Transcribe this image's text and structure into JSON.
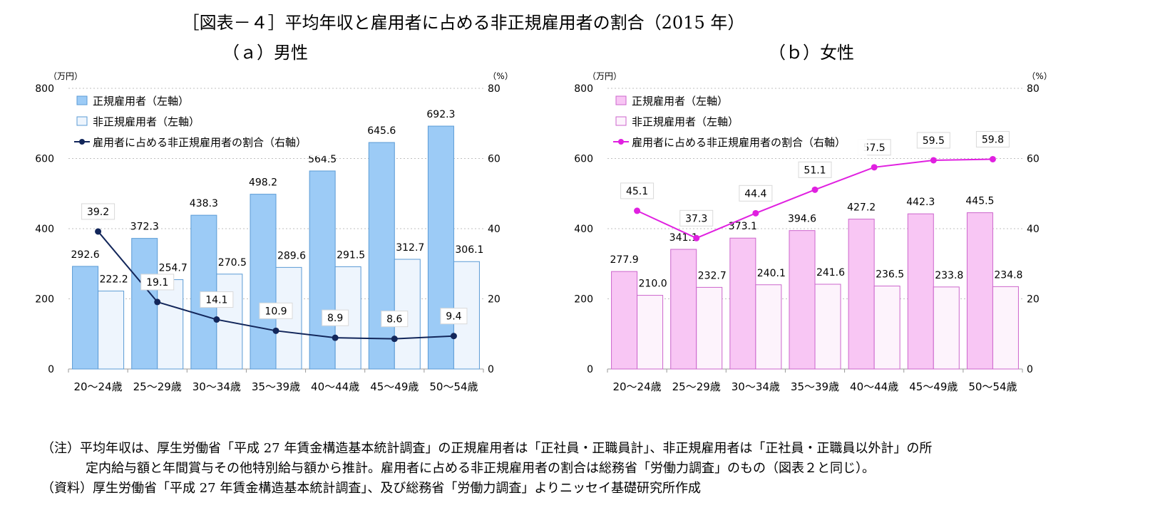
{
  "title": "［図表－４］平均年収と雇用者に占める非正規雇用者の割合（2015 年）",
  "notes": [
    "（注）平均年収は、厚生労働省「平成 27 年賃金構造基本統計調査」の正規雇用者は「正社員・正職員計」、非正規雇用者は「正社員・正職員以外計」の所",
    "定内給与額と年間賞与その他特別給与額から推計。雇用者に占める非正規雇用者の割合は総務省「労働力調査」のもの（図表２と同じ）。",
    "（資料）厚生労働省「平成 27 年賃金構造基本統計調査」、及び総務省「労働力調査」よりニッセイ基礎研究所作成"
  ],
  "chart_data": [
    {
      "type": "bar",
      "title": "（ａ）男性",
      "left_unit": "（万円）",
      "right_unit": "（%）",
      "ylim": [
        0,
        800
      ],
      "y2lim": [
        0,
        80
      ],
      "left_ticks": [
        0,
        200,
        400,
        600,
        800
      ],
      "right_ticks": [
        0,
        20,
        40,
        60,
        80
      ],
      "categories": [
        "20～24歳",
        "25～29歳",
        "30～34歳",
        "35～39歳",
        "40～44歳",
        "45～49歳",
        "50～54歳"
      ],
      "series": [
        {
          "name": "正規雇用者（左軸）",
          "kind": "bar",
          "axis": "left",
          "values": [
            292.6,
            372.3,
            438.3,
            498.2,
            564.5,
            645.6,
            692.3
          ],
          "fill": "#9ccbf6",
          "stroke": "#5b9bd5"
        },
        {
          "name": "非正規雇用者（左軸）",
          "kind": "bar",
          "axis": "left",
          "values": [
            222.2,
            254.7,
            270.5,
            289.6,
            291.5,
            312.7,
            306.1
          ],
          "fill": "#eef5fd",
          "stroke": "#5b9bd5"
        },
        {
          "name": "雇用者に占める非正規雇用者の割合（右軸）",
          "kind": "line",
          "axis": "right",
          "values": [
            39.2,
            19.1,
            14.1,
            10.9,
            8.9,
            8.6,
            9.4
          ],
          "color": "#12265a"
        }
      ],
      "grid": true,
      "legend": "top-left"
    },
    {
      "type": "bar",
      "title": "（ｂ）女性",
      "left_unit": "（万円）",
      "right_unit": "（%）",
      "ylim": [
        0,
        800
      ],
      "y2lim": [
        0,
        80
      ],
      "left_ticks": [
        0,
        200,
        400,
        600,
        800
      ],
      "right_ticks": [
        0,
        20,
        40,
        60,
        80
      ],
      "categories": [
        "20～24歳",
        "25～29歳",
        "30～34歳",
        "35～39歳",
        "40～44歳",
        "45～49歳",
        "50～54歳"
      ],
      "series": [
        {
          "name": "正規雇用者（左軸）",
          "kind": "bar",
          "axis": "left",
          "values": [
            277.9,
            341.1,
            373.1,
            394.6,
            427.2,
            442.3,
            445.5
          ],
          "fill": "#f8c6f4",
          "stroke": "#cc66cc"
        },
        {
          "name": "非正規雇用者（左軸）",
          "kind": "bar",
          "axis": "left",
          "values": [
            210.0,
            232.7,
            240.1,
            241.6,
            236.5,
            233.8,
            234.8
          ],
          "fill": "#fdf3fc",
          "stroke": "#cc66cc"
        },
        {
          "name": "雇用者に占める非正規雇用者の割合（右軸）",
          "kind": "line",
          "axis": "right",
          "values": [
            45.1,
            37.3,
            44.4,
            51.1,
            57.5,
            59.5,
            59.8
          ],
          "color": "#e020e0"
        }
      ],
      "grid": true,
      "legend": "top-left"
    }
  ]
}
